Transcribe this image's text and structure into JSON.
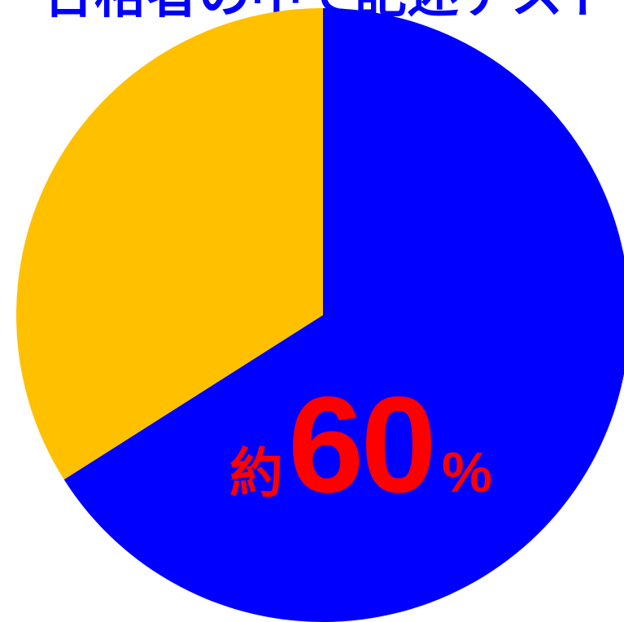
{
  "title": "合格者の中で記述テスト",
  "chart_data": {
    "type": "pie",
    "slices": [
      {
        "value": 66,
        "color": "#0000ff"
      },
      {
        "value": 34,
        "color": "#ffc000"
      }
    ],
    "start": "12 o'clock",
    "direction": "clockwise",
    "annotation": {
      "prefix": "約",
      "value": "60",
      "unit": "%",
      "color": "#ff0000"
    }
  }
}
